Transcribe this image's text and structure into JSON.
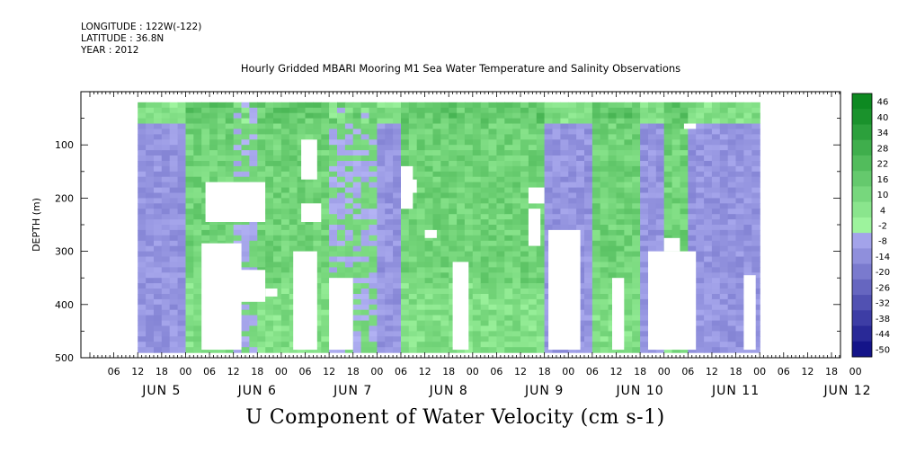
{
  "header": {
    "longitude": "LONGITUDE : 122W(-122)",
    "latitude": "LATITUDE : 36.8N",
    "year": "YEAR : 2012"
  },
  "title": "Hourly Gridded MBARI Mooring M1 Sea Water Temperature and Salinity Observations",
  "caption": "U Component of Water Velocity (cm s-1)",
  "chart_data": {
    "type": "heatmap",
    "xlabel": "",
    "ylabel": "DEPTH (m)",
    "ylim": [
      500,
      0
    ],
    "yticks": [
      100,
      200,
      300,
      400,
      500
    ],
    "hour_tick_labels": [
      "06",
      "12",
      "18",
      "00",
      "06",
      "12",
      "18",
      "00",
      "06",
      "12",
      "18",
      "00",
      "06",
      "12",
      "18",
      "00",
      "06",
      "12",
      "18",
      "00",
      "06",
      "12",
      "18",
      "00",
      "06",
      "12",
      "18",
      "00",
      "06",
      "12",
      "18",
      "00"
    ],
    "day_labels": [
      "JUN  5",
      "JUN  6",
      "JUN  7",
      "JUN  8",
      "JUN  9",
      "JUN 10",
      "JUN 11",
      "JUN 12"
    ],
    "colorbar": {
      "levels": [
        "48",
        "46",
        "40",
        "34",
        "28",
        "22",
        "16",
        "10",
        "4",
        "-2",
        "-8",
        "-14",
        "-20",
        "-26",
        "-32",
        "-38",
        "-44",
        "-50"
      ],
      "printed_labels": [
        "46",
        "40",
        "34",
        "28",
        "22",
        "16",
        "10",
        "4",
        "-2",
        "-8",
        "-14",
        "-20",
        "-26",
        "-32",
        "-38",
        "-44",
        "-50"
      ],
      "min": -50,
      "max": 48,
      "positive_color": "#11b53a",
      "negative_color": "#8f8ff0"
    },
    "data_extent": {
      "x_start": "JUN 5 12:00",
      "x_end": "JUN 12 00:00",
      "depth_top": 20,
      "depth_bottom": 485
    },
    "regimes": [
      {
        "from": "JUN 5 12:00",
        "to": "JUN 6 00:00",
        "sign": "negative"
      },
      {
        "from": "JUN 6 00:00",
        "to": "JUN 6 12:00",
        "sign": "positive"
      },
      {
        "from": "JUN 6 12:00",
        "to": "JUN 6 18:00",
        "sign": "mixed"
      },
      {
        "from": "JUN 6 18:00",
        "to": "JUN 7 12:00",
        "sign": "positive"
      },
      {
        "from": "JUN 7 12:00",
        "to": "JUN 8 00:00",
        "sign": "mixed"
      },
      {
        "from": "JUN 8 00:00",
        "to": "JUN 8 06:00",
        "sign": "negative"
      },
      {
        "from": "JUN 8 06:00",
        "to": "JUN 9 18:00",
        "sign": "positive"
      },
      {
        "from": "JUN 9 18:00",
        "to": "JUN 10 06:00",
        "sign": "negative"
      },
      {
        "from": "JUN 10 06:00",
        "to": "JUN 10 18:00",
        "sign": "positive"
      },
      {
        "from": "JUN 10 18:00",
        "to": "JUN 11 00:00",
        "sign": "negative"
      },
      {
        "from": "JUN 11 00:00",
        "to": "JUN 11 06:00",
        "sign": "positive"
      },
      {
        "from": "JUN 11 06:00",
        "to": "JUN 12 00:00",
        "sign": "negative"
      }
    ]
  }
}
